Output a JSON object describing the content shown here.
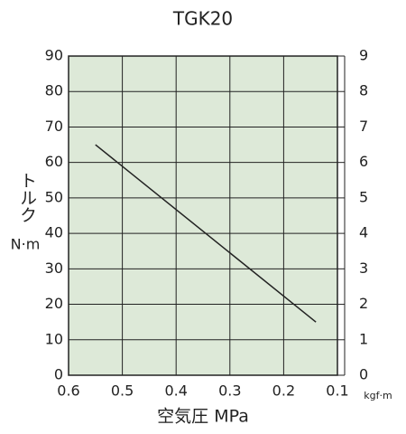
{
  "chart_data": {
    "type": "line",
    "title": "TGK20",
    "x_label": "空気圧  MPa",
    "y_label": "トルク",
    "y_unit": "N·m",
    "y2_unit": "kgf·m",
    "x": [
      0.55,
      0.14
    ],
    "series": [
      {
        "values": [
          65,
          15
        ],
        "color": "#222222"
      }
    ],
    "xlim": [
      0.6,
      0.1
    ],
    "xticks": [
      0.6,
      0.5,
      0.4,
      0.3,
      0.2,
      0.1
    ],
    "ylim": [
      0,
      90
    ],
    "yticks": [
      0,
      10,
      20,
      30,
      40,
      50,
      60,
      70,
      80,
      90
    ],
    "y2lim": [
      0,
      9
    ],
    "y2ticks": [
      0,
      1,
      2,
      3,
      4,
      5,
      6,
      7,
      8,
      9
    ],
    "grid": true,
    "background": "#dde9d8"
  }
}
